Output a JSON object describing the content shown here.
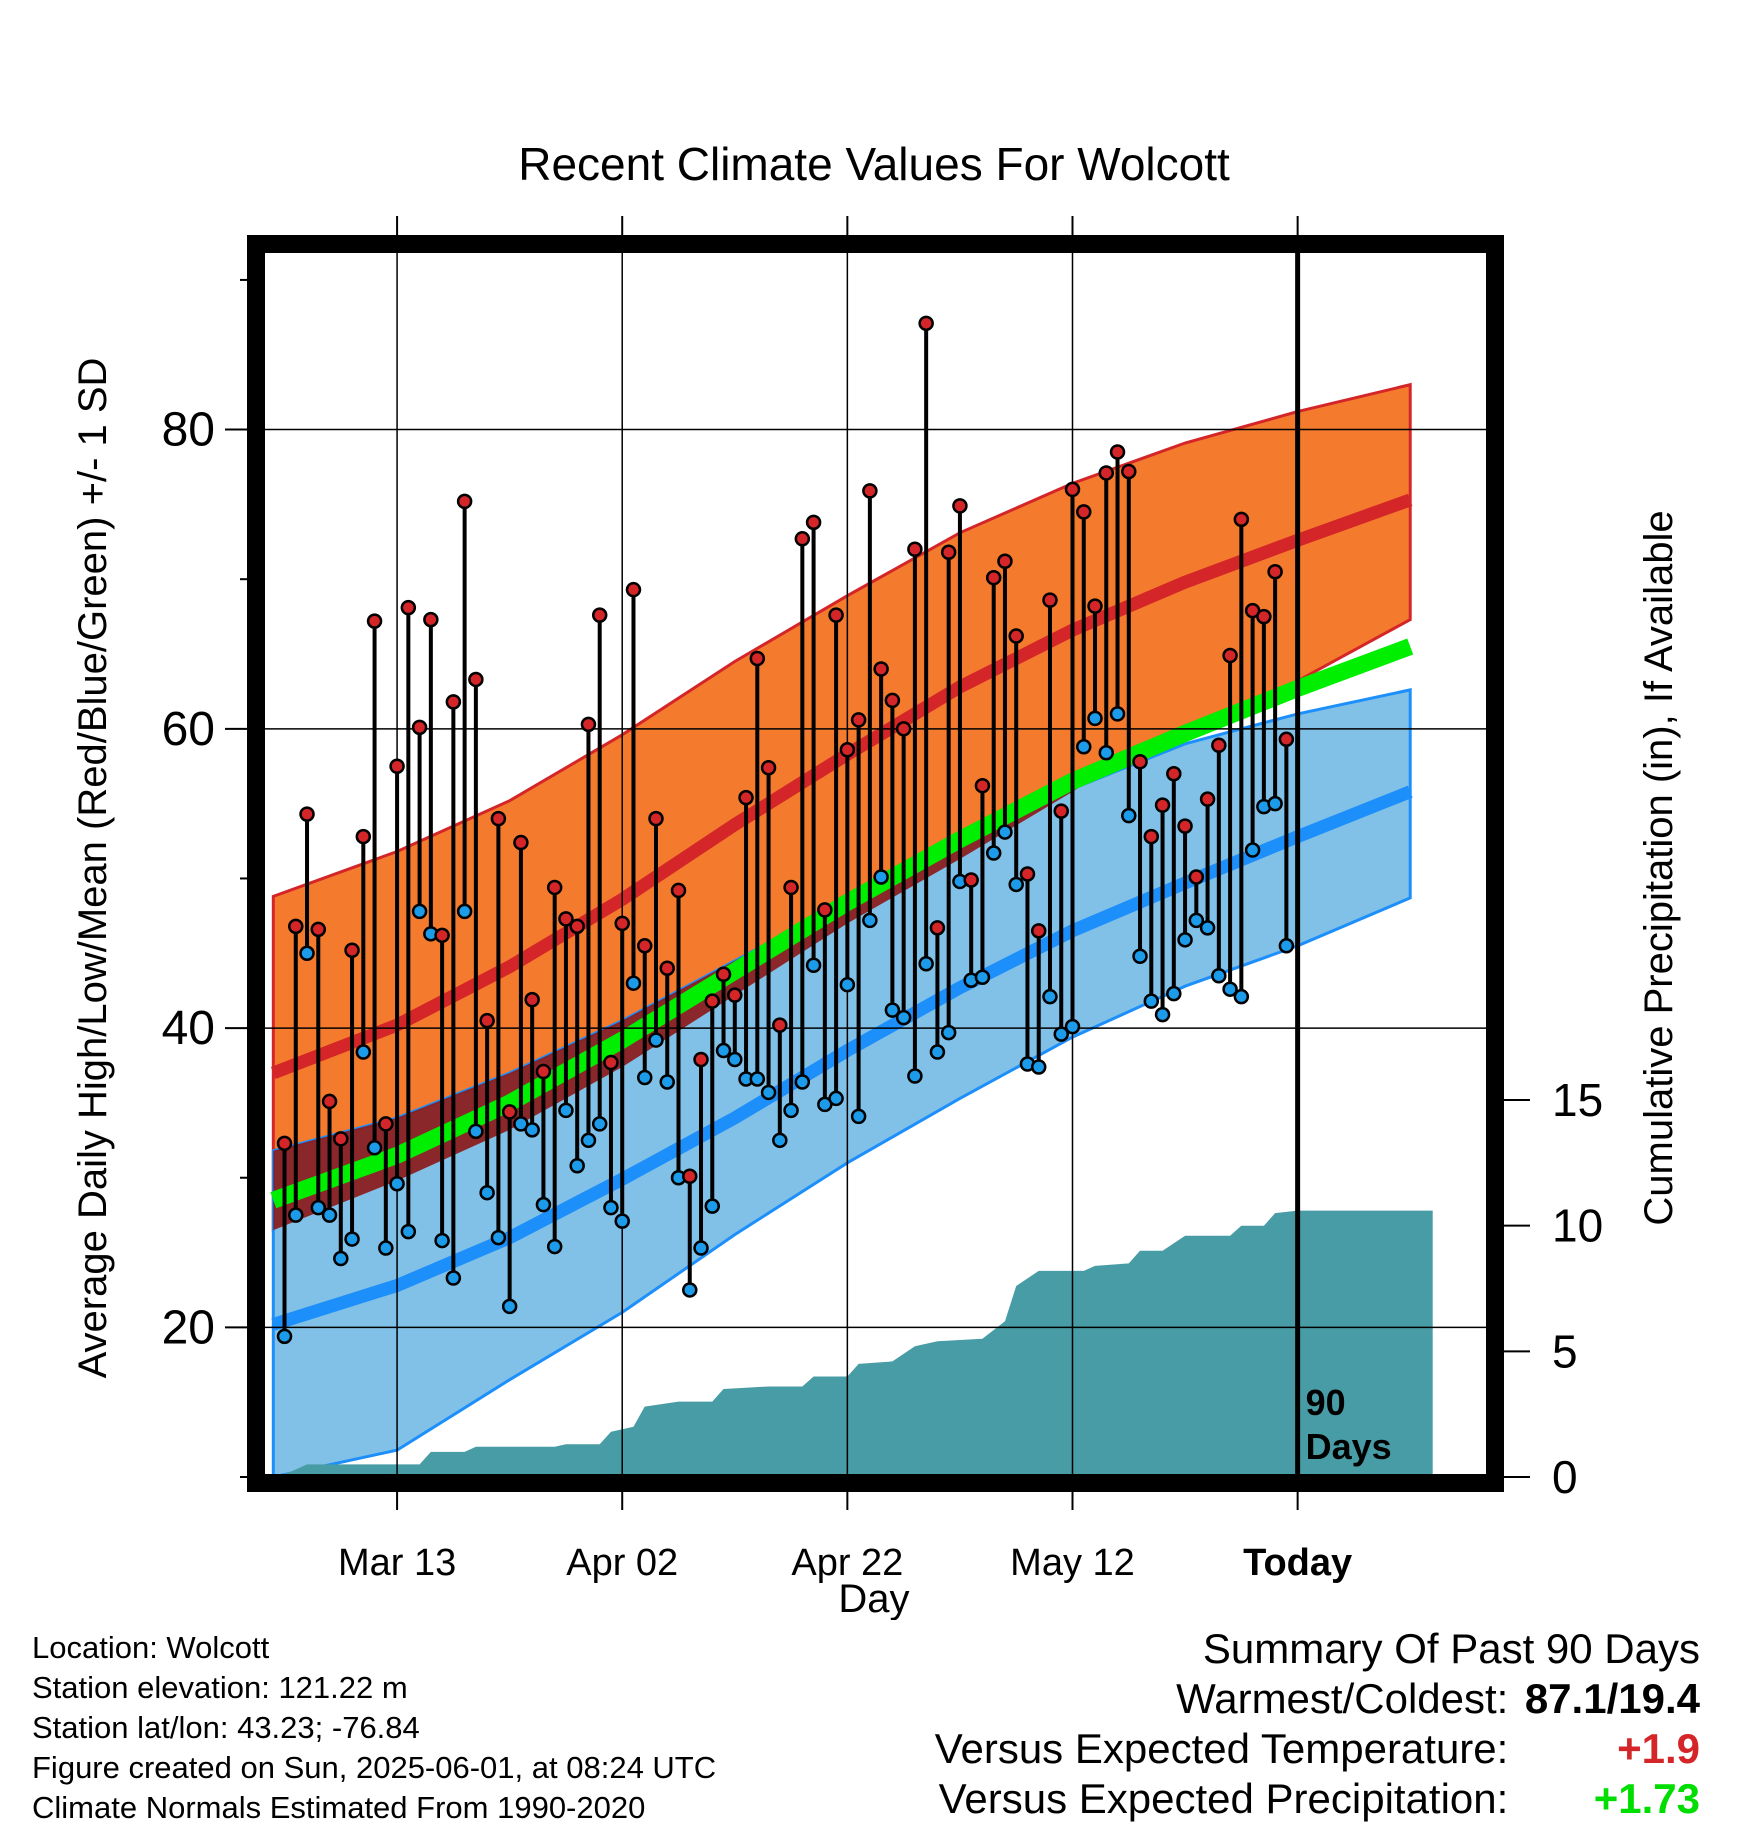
{
  "chart_data": {
    "type": "line",
    "title": "Recent Climate Values For Wolcott",
    "xlabel": "Day",
    "ylabel_left": "Average Daily High/Low/Mean (Red/Blue/Green) +/- 1 SD",
    "ylabel_right": "Cumulative Precipitation (in), If Available",
    "x_range": [
      -12,
      97
    ],
    "x_ticks": [
      {
        "day": 0,
        "label": "Mar 13"
      },
      {
        "day": 20,
        "label": "Apr 02"
      },
      {
        "day": 40,
        "label": "Apr 22"
      },
      {
        "day": 60,
        "label": "May 12"
      },
      {
        "day": 80,
        "label": "Today"
      }
    ],
    "ylim_left": [
      10,
      92
    ],
    "y_ticks_left": [
      20,
      40,
      60,
      80
    ],
    "ylim_right": [
      0,
      15
    ],
    "y_ticks_right": [
      0,
      5,
      10,
      15
    ],
    "marker_label": "90\nDays",
    "today_day": 80,
    "normals": {
      "days": [
        -11,
        0,
        10,
        20,
        30,
        40,
        50,
        60,
        70,
        80,
        90
      ],
      "high_mean": [
        37,
        40.2,
        44.1,
        48.6,
        53.6,
        58.3,
        62.8,
        66.6,
        69.8,
        72.6,
        75.3
      ],
      "high_plus_sd": [
        48.8,
        51.8,
        55.2,
        59.6,
        64.5,
        68.9,
        73.1,
        76.4,
        79.1,
        81.2,
        83
      ],
      "high_minus_sd": [
        26.5,
        29.8,
        33.2,
        37.4,
        42.2,
        47,
        51.3,
        55.8,
        59.4,
        63.2,
        67.3
      ],
      "low_mean": [
        20.2,
        22.8,
        26,
        29.9,
        34,
        38.5,
        42.7,
        46.5,
        49.7,
        52.8,
        55.8
      ],
      "low_plus_sd": [
        31.8,
        34,
        37,
        40.5,
        44.5,
        48.5,
        52.5,
        56,
        59,
        61,
        62.6
      ],
      "low_minus_sd": [
        10,
        11.8,
        16.5,
        21,
        26.2,
        31,
        35.3,
        39.4,
        42.8,
        45.5,
        48.7
      ],
      "mean_normal": [
        28.5,
        31.5,
        35,
        39.2,
        43.8,
        48.4,
        52.6,
        56.5,
        59.7,
        62.7,
        65.5
      ]
    },
    "observed": {
      "start_day": -10,
      "high": [
        32.3,
        46.8,
        54.3,
        46.6,
        35.1,
        32.6,
        45.2,
        52.8,
        67.2,
        33.6,
        57.5,
        68.1,
        60.1,
        67.3,
        46.2,
        61.8,
        75.2,
        63.3,
        40.5,
        54.0,
        34.4,
        52.4,
        41.9,
        37.1,
        49.4,
        47.3,
        46.8,
        60.3,
        67.6,
        37.7,
        47.0,
        69.3,
        45.5,
        54.0,
        44.0,
        49.2,
        30.1,
        37.9,
        41.8,
        43.6,
        42.2,
        55.4,
        64.7,
        57.4,
        40.2,
        49.4,
        72.7,
        73.8,
        47.9,
        67.6,
        58.6,
        60.6,
        75.9,
        64.0,
        61.9,
        60.0,
        72.0,
        87.1,
        46.7,
        71.8,
        74.9,
        49.9,
        56.2,
        70.1,
        71.2,
        66.2,
        50.3,
        46.5,
        68.6,
        54.5,
        76.0,
        74.5,
        68.2,
        77.1,
        78.5,
        77.2,
        57.8,
        52.8,
        54.9,
        57.0,
        53.5,
        50.1,
        55.3,
        58.9,
        64.9,
        74.0,
        67.9,
        67.5,
        70.5,
        59.3
      ],
      "low": [
        19.4,
        27.5,
        45.0,
        28.0,
        27.5,
        24.6,
        25.9,
        38.4,
        32.0,
        25.3,
        29.6,
        26.4,
        47.8,
        46.3,
        25.8,
        23.3,
        47.8,
        33.1,
        29.0,
        26.0,
        21.4,
        33.6,
        33.2,
        28.2,
        25.4,
        34.5,
        30.8,
        32.5,
        33.6,
        28.0,
        27.1,
        43.0,
        36.7,
        39.2,
        36.4,
        30.0,
        22.5,
        25.3,
        28.1,
        38.5,
        37.9,
        36.6,
        36.6,
        35.7,
        32.5,
        34.5,
        36.4,
        44.2,
        34.9,
        35.3,
        42.9,
        34.1,
        47.2,
        50.1,
        41.2,
        40.7,
        36.8,
        44.3,
        38.4,
        39.7,
        49.8,
        43.2,
        43.4,
        51.7,
        53.1,
        49.6,
        37.6,
        37.4,
        42.1,
        39.6,
        40.1,
        58.8,
        60.7,
        58.4,
        61.0,
        54.2,
        44.8,
        41.8,
        40.9,
        42.3,
        45.9,
        47.2,
        46.7,
        43.5,
        42.6,
        42.1,
        51.9,
        54.8,
        55.0,
        45.5
      ]
    },
    "precip_cumulative": {
      "points": [
        [
          -11,
          0
        ],
        [
          -9.5,
          0.2
        ],
        [
          -8,
          0.5
        ],
        [
          -2,
          0.5
        ],
        [
          2,
          0.5
        ],
        [
          3,
          1.0
        ],
        [
          6,
          1.0
        ],
        [
          7,
          1.2
        ],
        [
          14,
          1.2
        ],
        [
          15,
          1.3
        ],
        [
          18,
          1.3
        ],
        [
          19,
          1.8
        ],
        [
          21,
          2.0
        ],
        [
          22,
          2.8
        ],
        [
          25,
          3.0
        ],
        [
          28,
          3.0
        ],
        [
          29,
          3.5
        ],
        [
          33,
          3.6
        ],
        [
          36,
          3.6
        ],
        [
          37,
          4.0
        ],
        [
          40,
          4.0
        ],
        [
          41,
          4.5
        ],
        [
          44,
          4.6
        ],
        [
          46,
          5.2
        ],
        [
          48,
          5.4
        ],
        [
          52,
          5.5
        ],
        [
          54,
          6.2
        ],
        [
          55,
          7.6
        ],
        [
          57,
          8.2
        ],
        [
          61,
          8.2
        ],
        [
          62,
          8.4
        ],
        [
          65,
          8.5
        ],
        [
          66,
          9.0
        ],
        [
          68,
          9.0
        ],
        [
          70,
          9.6
        ],
        [
          74,
          9.6
        ],
        [
          75,
          10.0
        ],
        [
          77,
          10.0
        ],
        [
          78,
          10.5
        ],
        [
          80,
          10.6
        ],
        [
          92,
          10.6
        ]
      ]
    },
    "colors": {
      "high_band": "#f47b2e",
      "high_line": "#d42628",
      "low_band": "#82c1e7",
      "low_line": "#1d8ffb",
      "mean_line": "#00ee00",
      "overlap_dark": "#8b1616",
      "precip_fill": "#489ca5",
      "high_marker": "#d42628",
      "low_marker": "#1c9bea"
    }
  },
  "footer": {
    "location": "Location: Wolcott",
    "elevation": "Station elevation: 121.22 m",
    "latlon": "Station lat/lon: 43.23; -76.84",
    "created": "Figure created on Sun, 2025-06-01, at 08:24 UTC",
    "normals": "Climate Normals Estimated From 1990-2020"
  },
  "summary": {
    "title": "Summary Of Past 90 Days",
    "warmest_coldest_label": "Warmest/Coldest:",
    "warmest_coldest_value": "87.1/19.4",
    "temp_label": "Versus Expected Temperature:",
    "temp_value": "+1.9",
    "temp_color": "#d42628",
    "precip_label": "Versus Expected Precipitation:",
    "precip_value": "+1.73",
    "precip_color": "#00dd00"
  }
}
